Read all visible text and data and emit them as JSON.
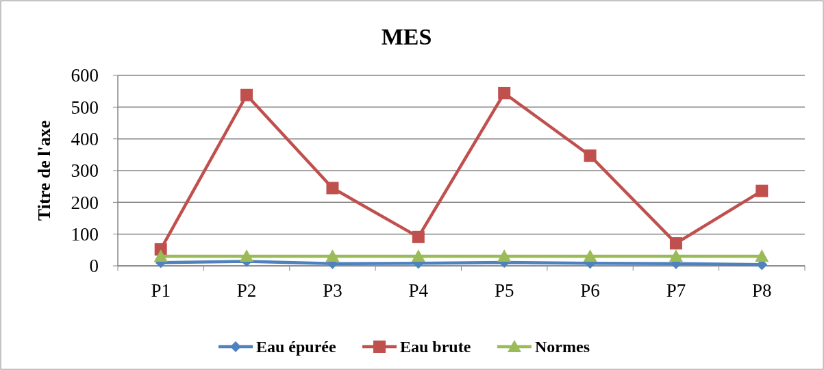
{
  "chart_data": {
    "type": "line",
    "title": "MES",
    "ylabel": "Titre de l'axe",
    "categories": [
      "P1",
      "P2",
      "P3",
      "P4",
      "P5",
      "P6",
      "P7",
      "P8"
    ],
    "series": [
      {
        "name": "Eau épurée",
        "color": "#4f81bd",
        "marker": "diamond",
        "values": [
          10,
          14,
          7,
          8,
          11,
          8,
          7,
          4
        ]
      },
      {
        "name": "Eau brute",
        "color": "#c0504d",
        "marker": "square",
        "values": [
          52,
          538,
          245,
          91,
          544,
          347,
          71,
          236
        ]
      },
      {
        "name": "Normes",
        "color": "#9bbb59",
        "marker": "triangle",
        "values": [
          30,
          30,
          30,
          30,
          30,
          30,
          30,
          30
        ]
      }
    ],
    "ylim": [
      0,
      600
    ],
    "yticks": [
      0,
      100,
      200,
      300,
      400,
      500,
      600
    ],
    "grid": "y",
    "legend": "bottom"
  }
}
